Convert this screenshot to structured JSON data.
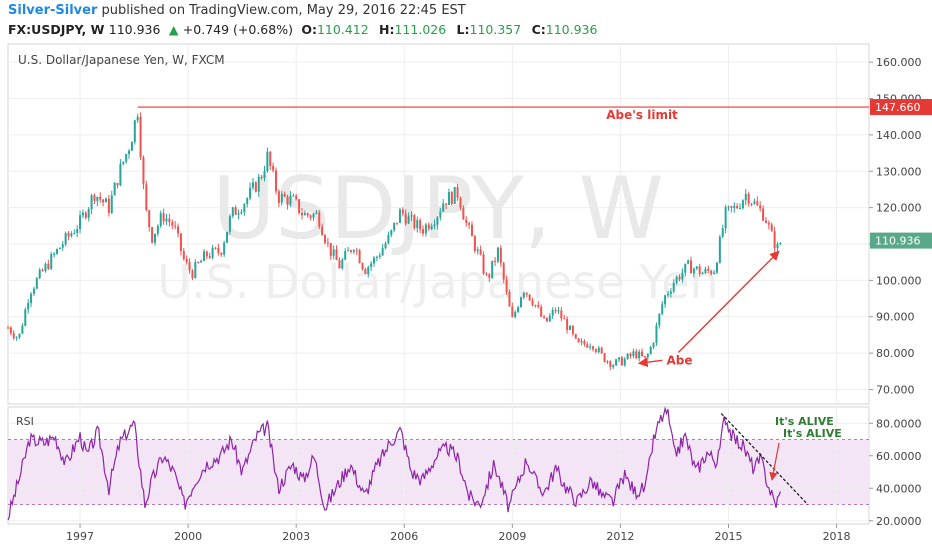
{
  "header": {
    "author": "Silver-Silver",
    "published_text": "published on TradingView.com, May 29, 2016 22:45 EST",
    "symbol": "FX:USDJPY, W",
    "last": "110.936",
    "change": "+0.749 (+0.68%)",
    "open_label": "O:",
    "open": "110.412",
    "high_label": "H:",
    "high": "111.026",
    "low_label": "L:",
    "low": "110.357",
    "close_label": "C:",
    "close": "110.936"
  },
  "colors": {
    "up": "#26a69a",
    "down": "#ef5350",
    "rsi": "#8e24aa",
    "rsi_band": "#f3e5f5",
    "limit": "#e53935",
    "trend": "#111111",
    "alive": "#2e7d32"
  },
  "chart_data": [
    {
      "type": "candlestick",
      "title": "U.S. Dollar/Japanese Yen, W, FXCM",
      "watermark_symbol": "USDJPY, W",
      "watermark_name": "U.S. Dollar/Japanese Yen",
      "ylim": [
        66,
        165
      ],
      "y_ticks": [
        "160.000",
        "150.000",
        "140.000",
        "130.000",
        "120.000",
        "110.000",
        "100.000",
        "90.000",
        "80.000",
        "70.000"
      ],
      "y_tick_values": [
        160,
        150,
        140,
        130,
        120,
        110,
        100,
        90,
        80,
        70
      ],
      "x_ticks": [
        "1997",
        "2000",
        "2003",
        "2006",
        "2009",
        "2012",
        "2015",
        "2018"
      ],
      "x_tick_values": [
        1997,
        2000,
        2003,
        2006,
        2009,
        2012,
        2015,
        2018
      ],
      "xlim": [
        1995.0,
        2018.9
      ],
      "series": [
        {
          "name": "FX:USDJPY, W",
          "points": [
            [
              1995.0,
              87
            ],
            [
              1995.3,
              84
            ],
            [
              1995.6,
              97
            ],
            [
              1996.0,
              103
            ],
            [
              1996.5,
              110
            ],
            [
              1997.0,
              116
            ],
            [
              1997.4,
              124
            ],
            [
              1997.8,
              120
            ],
            [
              1998.1,
              130
            ],
            [
              1998.4,
              138
            ],
            [
              1998.6,
              147
            ],
            [
              1998.8,
              120
            ],
            [
              1999.0,
              112
            ],
            [
              1999.3,
              118
            ],
            [
              1999.6,
              115
            ],
            [
              1999.9,
              105
            ],
            [
              2000.1,
              102
            ],
            [
              2000.5,
              107
            ],
            [
              2000.9,
              108
            ],
            [
              2001.2,
              118
            ],
            [
              2001.6,
              122
            ],
            [
              2002.0,
              128
            ],
            [
              2002.2,
              134
            ],
            [
              2002.5,
              123
            ],
            [
              2002.9,
              122
            ],
            [
              2003.2,
              118
            ],
            [
              2003.6,
              118
            ],
            [
              2003.9,
              109
            ],
            [
              2004.2,
              104
            ],
            [
              2004.6,
              110
            ],
            [
              2004.9,
              103
            ],
            [
              2005.2,
              106
            ],
            [
              2005.6,
              112
            ],
            [
              2005.9,
              119
            ],
            [
              2006.2,
              116
            ],
            [
              2006.5,
              114
            ],
            [
              2006.9,
              118
            ],
            [
              2007.1,
              122
            ],
            [
              2007.5,
              124
            ],
            [
              2007.7,
              116
            ],
            [
              2008.1,
              106
            ],
            [
              2008.3,
              100
            ],
            [
              2008.6,
              108
            ],
            [
              2008.9,
              93
            ],
            [
              2009.0,
              89
            ],
            [
              2009.3,
              98
            ],
            [
              2009.6,
              94
            ],
            [
              2009.9,
              88
            ],
            [
              2010.2,
              92
            ],
            [
              2010.5,
              88
            ],
            [
              2010.8,
              82
            ],
            [
              2011.2,
              83
            ],
            [
              2011.5,
              79
            ],
            [
              2011.8,
              77
            ],
            [
              2012.1,
              78
            ],
            [
              2012.4,
              80
            ],
            [
              2012.7,
              78
            ],
            [
              2012.9,
              83
            ],
            [
              2013.2,
              95
            ],
            [
              2013.5,
              100
            ],
            [
              2013.9,
              104
            ],
            [
              2014.3,
              102
            ],
            [
              2014.6,
              103
            ],
            [
              2014.8,
              112
            ],
            [
              2014.9,
              118
            ],
            [
              2015.2,
              120
            ],
            [
              2015.5,
              124
            ],
            [
              2015.8,
              120
            ],
            [
              2016.0,
              118
            ],
            [
              2016.2,
              112
            ],
            [
              2016.4,
              108
            ],
            [
              2016.45,
              110.936
            ]
          ]
        }
      ],
      "annotations": [
        {
          "text": "Abe's limit",
          "y": 147.66,
          "price_label": "147.660"
        },
        {
          "text": "Abe",
          "x": 2012.5,
          "y": 78
        },
        {
          "text": "110.936",
          "y": 110.936
        }
      ]
    },
    {
      "type": "line",
      "title": "RSI",
      "ylim": [
        18,
        90
      ],
      "y_ticks": [
        "80.0000",
        "60.0000",
        "40.0000",
        "20.0000"
      ],
      "y_tick_values": [
        80,
        60,
        40,
        20
      ],
      "band": [
        30,
        70
      ],
      "series": [
        {
          "name": "RSI",
          "points": [
            [
              1995.0,
              22
            ],
            [
              1995.3,
              45
            ],
            [
              1995.6,
              70
            ],
            [
              1996.0,
              68
            ],
            [
              1996.3,
              72
            ],
            [
              1996.6,
              55
            ],
            [
              1997.0,
              72
            ],
            [
              1997.2,
              60
            ],
            [
              1997.5,
              75
            ],
            [
              1997.8,
              40
            ],
            [
              1998.1,
              68
            ],
            [
              1998.5,
              80
            ],
            [
              1998.8,
              30
            ],
            [
              1999.0,
              45
            ],
            [
              1999.3,
              60
            ],
            [
              1999.6,
              50
            ],
            [
              1999.9,
              30
            ],
            [
              2000.2,
              45
            ],
            [
              2000.5,
              55
            ],
            [
              2000.9,
              60
            ],
            [
              2001.2,
              70
            ],
            [
              2001.5,
              50
            ],
            [
              2001.9,
              72
            ],
            [
              2002.2,
              78
            ],
            [
              2002.5,
              40
            ],
            [
              2002.9,
              55
            ],
            [
              2003.2,
              45
            ],
            [
              2003.5,
              60
            ],
            [
              2003.8,
              28
            ],
            [
              2004.1,
              40
            ],
            [
              2004.5,
              55
            ],
            [
              2004.9,
              35
            ],
            [
              2005.2,
              52
            ],
            [
              2005.6,
              68
            ],
            [
              2005.9,
              76
            ],
            [
              2006.2,
              50
            ],
            [
              2006.5,
              45
            ],
            [
              2006.9,
              60
            ],
            [
              2007.2,
              65
            ],
            [
              2007.5,
              58
            ],
            [
              2007.8,
              35
            ],
            [
              2008.1,
              30
            ],
            [
              2008.5,
              55
            ],
            [
              2008.9,
              28
            ],
            [
              2009.1,
              40
            ],
            [
              2009.4,
              58
            ],
            [
              2009.7,
              42
            ],
            [
              2009.9,
              38
            ],
            [
              2010.2,
              52
            ],
            [
              2010.5,
              40
            ],
            [
              2010.8,
              32
            ],
            [
              2011.2,
              45
            ],
            [
              2011.5,
              35
            ],
            [
              2011.8,
              32
            ],
            [
              2012.1,
              48
            ],
            [
              2012.4,
              38
            ],
            [
              2012.7,
              40
            ],
            [
              2012.9,
              68
            ],
            [
              2013.1,
              82
            ],
            [
              2013.3,
              88
            ],
            [
              2013.5,
              60
            ],
            [
              2013.8,
              72
            ],
            [
              2014.1,
              50
            ],
            [
              2014.4,
              62
            ],
            [
              2014.7,
              56
            ],
            [
              2014.9,
              85
            ],
            [
              2015.1,
              72
            ],
            [
              2015.4,
              66
            ],
            [
              2015.7,
              52
            ],
            [
              2015.9,
              58
            ],
            [
              2016.1,
              42
            ],
            [
              2016.3,
              30
            ],
            [
              2016.45,
              37
            ]
          ]
        }
      ],
      "annotations": [
        {
          "text": "It's ALIVE",
          "x": 2016.5,
          "y": 80
        },
        {
          "text": "It's ALIVE",
          "x": 2016.8,
          "y": 74
        }
      ]
    }
  ]
}
